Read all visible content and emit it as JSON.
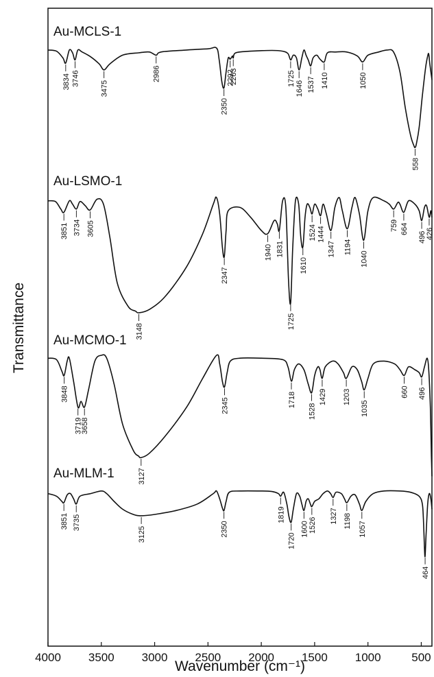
{
  "chart_data": {
    "type": "line",
    "title": "",
    "xlabel": "Wavenumber (cm⁻¹)",
    "ylabel": "Transmittance",
    "xlim": [
      4000,
      400
    ],
    "x_ticks": [
      4000,
      3500,
      3000,
      2500,
      2000,
      1500,
      1000,
      500
    ],
    "x_tick_labels": [
      "4000",
      "3500",
      "3000",
      "2500",
      "2000",
      "1500",
      "1000",
      "500"
    ],
    "x_reversed": true,
    "grid": false,
    "legend": "none",
    "series": [
      {
        "name": "Au-MCLS-1",
        "peaks": [
          3834,
          3746,
          3475,
          2986,
          2350,
          2292,
          2263,
          1725,
          1646,
          1537,
          1410,
          1050,
          558
        ],
        "peak_labels": [
          "3834",
          "3746",
          "3475",
          "2986",
          "2350",
          "2292",
          "2263",
          "1725",
          "1646",
          "1537",
          "1410",
          "1050",
          "558"
        ],
        "curve": [
          [
            4000,
            0.05
          ],
          [
            3920,
            0.08
          ],
          [
            3860,
            0.25
          ],
          [
            3834,
            0.38
          ],
          [
            3800,
            0.05
          ],
          [
            3770,
            0.12
          ],
          [
            3746,
            0.3
          ],
          [
            3720,
            0.05
          ],
          [
            3680,
            0.1
          ],
          [
            3600,
            0.22
          ],
          [
            3520,
            0.4
          ],
          [
            3475,
            0.55
          ],
          [
            3420,
            0.4
          ],
          [
            3300,
            0.18
          ],
          [
            3150,
            0.12
          ],
          [
            3050,
            0.1
          ],
          [
            2986,
            0.18
          ],
          [
            2940,
            0.1
          ],
          [
            2700,
            0.05
          ],
          [
            2500,
            0.02
          ],
          [
            2420,
            0.0
          ],
          [
            2395,
            0.3
          ],
          [
            2370,
            0.85
          ],
          [
            2350,
            1.0
          ],
          [
            2330,
            0.6
          ],
          [
            2310,
            0.25
          ],
          [
            2292,
            0.28
          ],
          [
            2270,
            0.2
          ],
          [
            2263,
            0.25
          ],
          [
            2240,
            0.12
          ],
          [
            2100,
            0.08
          ],
          [
            1900,
            0.06
          ],
          [
            1800,
            0.08
          ],
          [
            1750,
            0.14
          ],
          [
            1725,
            0.3
          ],
          [
            1700,
            0.18
          ],
          [
            1670,
            0.25
          ],
          [
            1646,
            0.55
          ],
          [
            1620,
            0.25
          ],
          [
            1600,
            0.05
          ],
          [
            1580,
            0.18
          ],
          [
            1560,
            0.3
          ],
          [
            1537,
            0.45
          ],
          [
            1515,
            0.25
          ],
          [
            1480,
            0.18
          ],
          [
            1450,
            0.28
          ],
          [
            1410,
            0.35
          ],
          [
            1380,
            0.12
          ],
          [
            1300,
            0.1
          ],
          [
            1200,
            0.1
          ],
          [
            1100,
            0.2
          ],
          [
            1050,
            0.35
          ],
          [
            1000,
            0.18
          ],
          [
            900,
            0.1
          ],
          [
            820,
            0.05
          ],
          [
            760,
            0.1
          ],
          [
            700,
            0.6
          ],
          [
            650,
            1.5
          ],
          [
            600,
            2.2
          ],
          [
            570,
            2.45
          ],
          [
            558,
            2.5
          ],
          [
            545,
            2.4
          ],
          [
            520,
            2.0
          ],
          [
            490,
            1.2
          ],
          [
            460,
            0.5
          ],
          [
            440,
            0.2
          ],
          [
            430,
            0.15
          ],
          [
            420,
            0.4
          ],
          [
            400,
            0.8
          ]
        ]
      },
      {
        "name": "Au-LSMO-1",
        "peaks": [
          3851,
          3734,
          3605,
          3148,
          2347,
          1940,
          1831,
          1725,
          1610,
          1524,
          1444,
          1347,
          1194,
          1040,
          759,
          664,
          496,
          426
        ],
        "peak_labels": [
          "3851",
          "3734",
          "3605",
          "3148",
          "2347",
          "1940",
          "1831",
          "1725",
          "1610",
          "1524",
          "1444",
          "1347",
          "1194",
          "1040",
          "759",
          "664",
          "496",
          "426"
        ],
        "curve": [
          [
            4000,
            0.1
          ],
          [
            3930,
            0.12
          ],
          [
            3880,
            0.35
          ],
          [
            3851,
            0.45
          ],
          [
            3800,
            0.1
          ],
          [
            3770,
            0.2
          ],
          [
            3734,
            0.35
          ],
          [
            3700,
            0.12
          ],
          [
            3650,
            0.25
          ],
          [
            3605,
            0.38
          ],
          [
            3540,
            0.05
          ],
          [
            3480,
            0.2
          ],
          [
            3420,
            1.2
          ],
          [
            3350,
            2.6
          ],
          [
            3250,
            3.3
          ],
          [
            3180,
            3.45
          ],
          [
            3148,
            3.5
          ],
          [
            3050,
            3.4
          ],
          [
            2900,
            3.0
          ],
          [
            2700,
            2.1
          ],
          [
            2550,
            1.1
          ],
          [
            2450,
            0.2
          ],
          [
            2420,
            0.0
          ],
          [
            2390,
            0.5
          ],
          [
            2365,
            1.5
          ],
          [
            2347,
            1.8
          ],
          [
            2330,
            1.0
          ],
          [
            2310,
            0.4
          ],
          [
            2200,
            0.3
          ],
          [
            2100,
            0.6
          ],
          [
            2000,
            1.0
          ],
          [
            1940,
            1.1
          ],
          [
            1880,
            0.7
          ],
          [
            1850,
            0.8
          ],
          [
            1831,
            1.0
          ],
          [
            1800,
            0.1
          ],
          [
            1770,
            0.3
          ],
          [
            1745,
            2.5
          ],
          [
            1725,
            3.2
          ],
          [
            1705,
            1.5
          ],
          [
            1680,
            0.1
          ],
          [
            1650,
            0.2
          ],
          [
            1630,
            1.2
          ],
          [
            1610,
            1.5
          ],
          [
            1590,
            0.6
          ],
          [
            1570,
            0.2
          ],
          [
            1545,
            0.3
          ],
          [
            1524,
            0.5
          ],
          [
            1500,
            0.2
          ],
          [
            1470,
            0.35
          ],
          [
            1444,
            0.55
          ],
          [
            1420,
            0.2
          ],
          [
            1390,
            0.5
          ],
          [
            1347,
            1.0
          ],
          [
            1310,
            0.3
          ],
          [
            1270,
            0.0
          ],
          [
            1240,
            0.4
          ],
          [
            1194,
            0.95
          ],
          [
            1150,
            0.3
          ],
          [
            1120,
            0.0
          ],
          [
            1080,
            0.5
          ],
          [
            1040,
            1.3
          ],
          [
            1000,
            0.4
          ],
          [
            950,
            0.0
          ],
          [
            850,
            0.1
          ],
          [
            800,
            0.2
          ],
          [
            759,
            0.35
          ],
          [
            720,
            0.15
          ],
          [
            700,
            0.2
          ],
          [
            664,
            0.45
          ],
          [
            620,
            0.1
          ],
          [
            560,
            0.2
          ],
          [
            520,
            0.4
          ],
          [
            496,
            0.7
          ],
          [
            470,
            0.3
          ],
          [
            450,
            0.25
          ],
          [
            426,
            0.6
          ],
          [
            410,
            0.4
          ],
          [
            400,
            0.6
          ]
        ]
      },
      {
        "name": "Au-MCMO-1",
        "peaks": [
          3848,
          3719,
          3658,
          3127,
          2345,
          1718,
          1528,
          1429,
          1203,
          1035,
          660,
          496
        ],
        "peak_labels": [
          "3848",
          "3719",
          "3658",
          "3127",
          "2345",
          "1718",
          "1528",
          "1429",
          "1203",
          "1035",
          "660",
          "496"
        ],
        "curve": [
          [
            4000,
            0.1
          ],
          [
            3920,
            0.15
          ],
          [
            3870,
            0.55
          ],
          [
            3848,
            0.7
          ],
          [
            3820,
            0.2
          ],
          [
            3800,
            0.1
          ],
          [
            3760,
            0.9
          ],
          [
            3719,
            1.8
          ],
          [
            3690,
            1.6
          ],
          [
            3658,
            1.8
          ],
          [
            3620,
            1.2
          ],
          [
            3560,
            0.2
          ],
          [
            3500,
            0.0
          ],
          [
            3450,
            0.1
          ],
          [
            3380,
            1.0
          ],
          [
            3300,
            2.4
          ],
          [
            3200,
            3.3
          ],
          [
            3150,
            3.5
          ],
          [
            3127,
            3.55
          ],
          [
            3050,
            3.4
          ],
          [
            2900,
            2.8
          ],
          [
            2700,
            1.8
          ],
          [
            2550,
            0.8
          ],
          [
            2420,
            0.0
          ],
          [
            2390,
            0.3
          ],
          [
            2365,
            0.9
          ],
          [
            2345,
            1.1
          ],
          [
            2320,
            0.6
          ],
          [
            2290,
            0.2
          ],
          [
            2200,
            0.1
          ],
          [
            2000,
            0.1
          ],
          [
            1800,
            0.15
          ],
          [
            1750,
            0.4
          ],
          [
            1718,
            0.9
          ],
          [
            1690,
            0.5
          ],
          [
            1650,
            0.3
          ],
          [
            1600,
            0.5
          ],
          [
            1560,
            1.0
          ],
          [
            1528,
            1.3
          ],
          [
            1500,
            0.7
          ],
          [
            1470,
            0.4
          ],
          [
            1450,
            0.5
          ],
          [
            1429,
            0.8
          ],
          [
            1400,
            0.4
          ],
          [
            1330,
            0.2
          ],
          [
            1280,
            0.3
          ],
          [
            1230,
            0.6
          ],
          [
            1203,
            0.8
          ],
          [
            1150,
            0.4
          ],
          [
            1100,
            0.5
          ],
          [
            1060,
            0.9
          ],
          [
            1035,
            1.2
          ],
          [
            1000,
            0.8
          ],
          [
            950,
            0.3
          ],
          [
            850,
            0.2
          ],
          [
            750,
            0.3
          ],
          [
            700,
            0.5
          ],
          [
            660,
            0.7
          ],
          [
            620,
            0.4
          ],
          [
            560,
            0.5
          ],
          [
            520,
            0.6
          ],
          [
            496,
            0.75
          ],
          [
            470,
            0.4
          ],
          [
            445,
            0.1
          ],
          [
            430,
            0.5
          ],
          [
            415,
            1.8
          ],
          [
            405,
            3.5
          ],
          [
            400,
            4.2
          ]
        ]
      },
      {
        "name": "Au-MLM-1",
        "peaks": [
          3851,
          3735,
          3125,
          2350,
          1819,
          1720,
          1600,
          1526,
          1327,
          1198,
          1057,
          464
        ],
        "peak_labels": [
          "3851",
          "3735",
          "3125",
          "2350",
          "1819",
          "1720",
          "1600",
          "1526",
          "1327",
          "1198",
          "1057",
          "464"
        ],
        "curve": [
          [
            4000,
            0.2
          ],
          [
            3920,
            0.3
          ],
          [
            3870,
            0.5
          ],
          [
            3851,
            0.55
          ],
          [
            3820,
            0.25
          ],
          [
            3790,
            0.2
          ],
          [
            3760,
            0.4
          ],
          [
            3735,
            0.6
          ],
          [
            3700,
            0.3
          ],
          [
            3600,
            0.2
          ],
          [
            3500,
            0.1
          ],
          [
            3450,
            0.2
          ],
          [
            3380,
            0.5
          ],
          [
            3300,
            0.8
          ],
          [
            3200,
            1.0
          ],
          [
            3125,
            1.05
          ],
          [
            3000,
            1.0
          ],
          [
            2800,
            0.85
          ],
          [
            2600,
            0.6
          ],
          [
            2450,
            0.2
          ],
          [
            2420,
            0.1
          ],
          [
            2390,
            0.4
          ],
          [
            2365,
            0.75
          ],
          [
            2350,
            0.85
          ],
          [
            2330,
            0.5
          ],
          [
            2300,
            0.15
          ],
          [
            2200,
            0.1
          ],
          [
            2000,
            0.1
          ],
          [
            1900,
            0.12
          ],
          [
            1840,
            0.2
          ],
          [
            1819,
            0.3
          ],
          [
            1790,
            0.15
          ],
          [
            1760,
            0.6
          ],
          [
            1740,
            1.1
          ],
          [
            1720,
            1.3
          ],
          [
            1700,
            0.8
          ],
          [
            1670,
            0.2
          ],
          [
            1640,
            0.3
          ],
          [
            1620,
            0.6
          ],
          [
            1600,
            0.85
          ],
          [
            1580,
            0.5
          ],
          [
            1560,
            0.4
          ],
          [
            1540,
            0.6
          ],
          [
            1526,
            0.7
          ],
          [
            1500,
            0.5
          ],
          [
            1460,
            0.4
          ],
          [
            1420,
            0.2
          ],
          [
            1380,
            0.1
          ],
          [
            1350,
            0.2
          ],
          [
            1327,
            0.35
          ],
          [
            1300,
            0.15
          ],
          [
            1250,
            0.2
          ],
          [
            1220,
            0.4
          ],
          [
            1198,
            0.55
          ],
          [
            1160,
            0.3
          ],
          [
            1120,
            0.25
          ],
          [
            1080,
            0.6
          ],
          [
            1057,
            0.85
          ],
          [
            1020,
            0.5
          ],
          [
            950,
            0.2
          ],
          [
            850,
            0.1
          ],
          [
            700,
            0.1
          ],
          [
            600,
            0.15
          ],
          [
            520,
            0.3
          ],
          [
            490,
            0.6
          ],
          [
            480,
            1.2
          ],
          [
            470,
            2.3
          ],
          [
            464,
            2.6
          ],
          [
            455,
            1.8
          ],
          [
            440,
            0.6
          ],
          [
            425,
            0.2
          ],
          [
            410,
            0.4
          ],
          [
            400,
            0.8
          ]
        ]
      }
    ]
  }
}
